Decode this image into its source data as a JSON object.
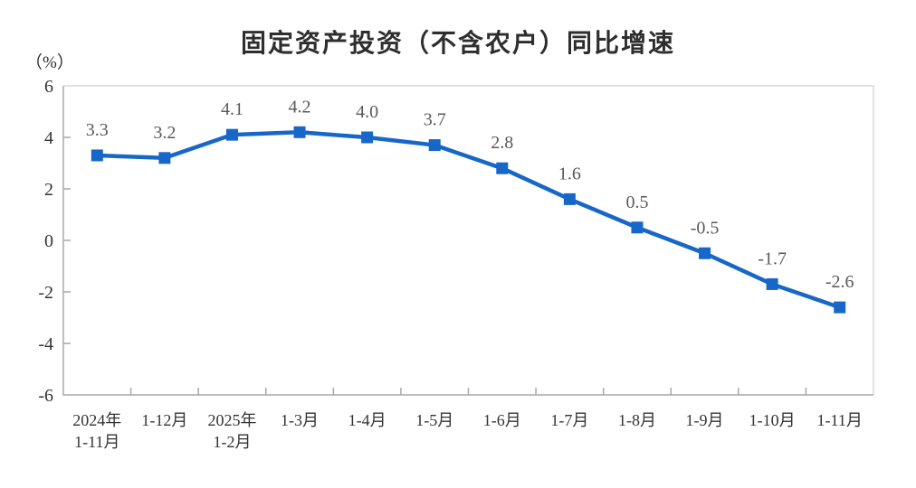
{
  "chart_data": {
    "type": "line",
    "title": "固定资产投资（不含农户）同比增速",
    "ylabel": "（%）",
    "xlabel": "",
    "categories": [
      "2024年\n1-11月",
      "1-12月",
      "2025年\n1-2月",
      "1-3月",
      "1-4月",
      "1-5月",
      "1-6月",
      "1-7月",
      "1-8月",
      "1-9月",
      "1-10月",
      "1-11月"
    ],
    "values": [
      3.3,
      3.2,
      4.1,
      4.2,
      4.0,
      3.7,
      2.8,
      1.6,
      0.5,
      -0.5,
      -1.7,
      -2.6
    ],
    "point_labels": [
      "3.3",
      "3.2",
      "4.1",
      "4.2",
      "4.0",
      "3.7",
      "2.8",
      "1.6",
      "0.5",
      "-0.5",
      "-1.7",
      "-2.6"
    ],
    "ylim": [
      -6,
      6
    ],
    "yticks": [
      6,
      4,
      2,
      0,
      -2,
      -4,
      -6
    ],
    "grid": false,
    "legend": "none",
    "marker": "square",
    "colors": {
      "line": "#1767c9",
      "marker": "#1767c9",
      "point_label": "#595959",
      "axis": "#a8a8a8",
      "plot_border": "#d9d9d9",
      "tick_text": "#333333",
      "title_text": "#2e2e2e"
    }
  }
}
